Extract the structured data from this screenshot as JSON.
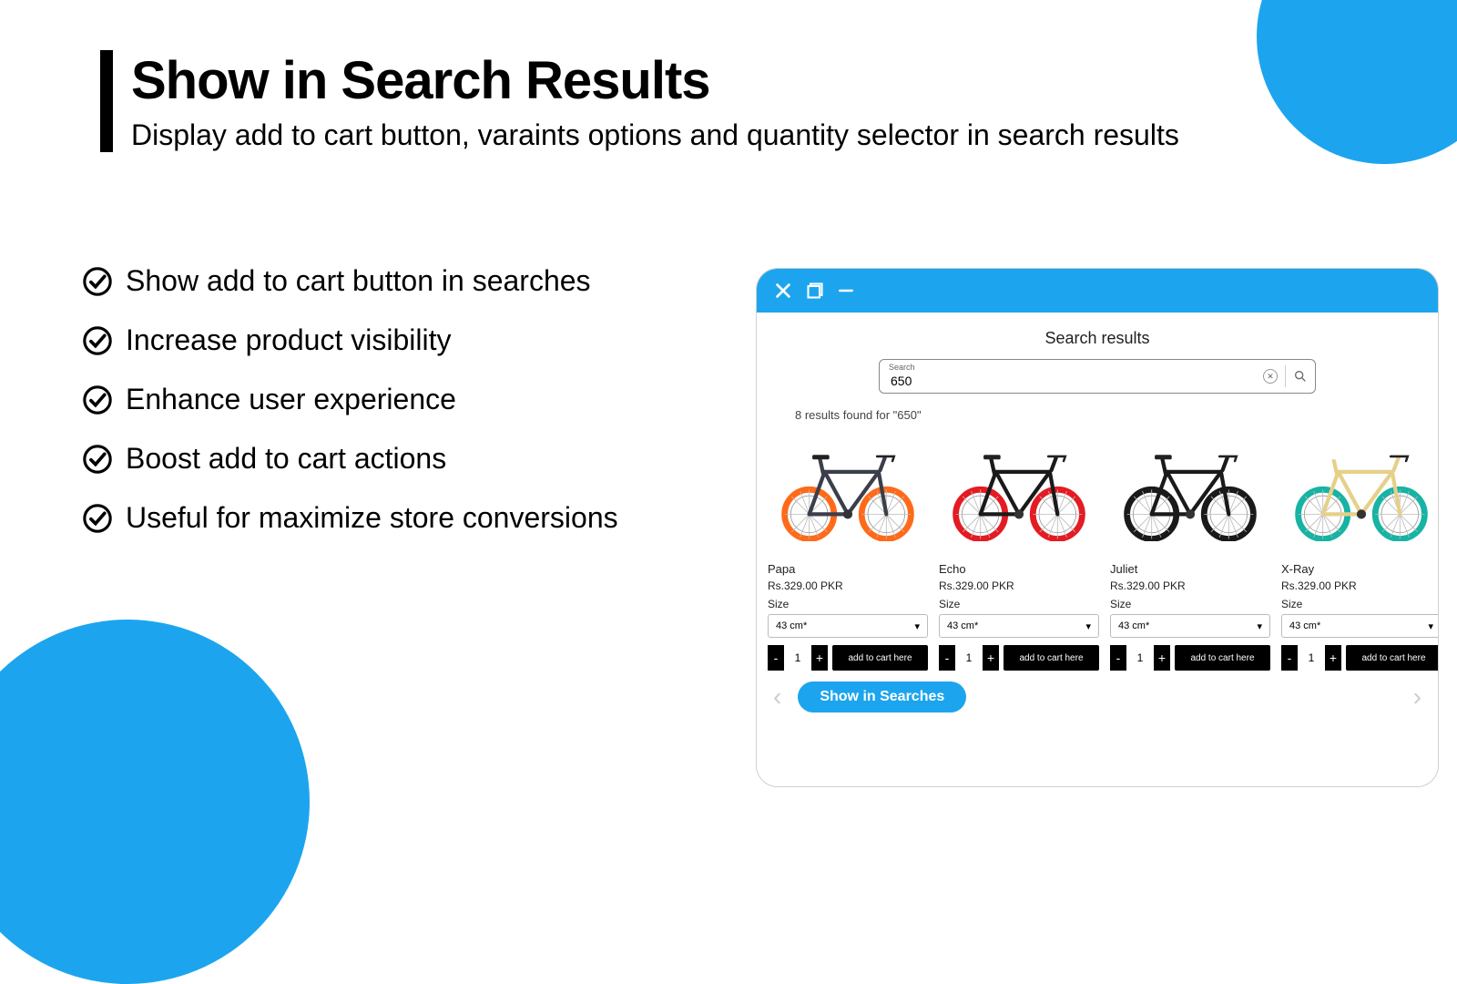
{
  "heading": {
    "title": "Show in Search Results",
    "subtitle": "Display add to cart button, varaints options and quantity selector in search results"
  },
  "bullets": [
    "Show add to cart button in searches",
    "Increase product visibility",
    "Enhance user experience",
    "Boost add to cart actions",
    "Useful for maximize store conversions"
  ],
  "colors": {
    "accent": "#1ca5ee",
    "black": "#000000"
  },
  "mockup": {
    "search_title": "Search results",
    "search_label": "Search",
    "search_value": "650",
    "results_text": "8 results found for \"650\"",
    "footer_pill": "Show in Searches",
    "size_label": "Size",
    "size_value": "43 cm*",
    "qty": "1",
    "addcart_label": "add to cart here",
    "products": [
      {
        "name": "Papa",
        "price": "Rs.329.00 PKR",
        "frame": "#3b3f4a",
        "wheel": "#ff6a1a"
      },
      {
        "name": "Echo",
        "price": "Rs.329.00 PKR",
        "frame": "#1a1a1a",
        "wheel": "#e41b23"
      },
      {
        "name": "Juliet",
        "price": "Rs.329.00 PKR",
        "frame": "#1a1a1a",
        "wheel": "#1a1a1a"
      },
      {
        "name": "X-Ray",
        "price": "Rs.329.00 PKR",
        "frame": "#e6d089",
        "wheel": "#17b3a3"
      }
    ]
  }
}
